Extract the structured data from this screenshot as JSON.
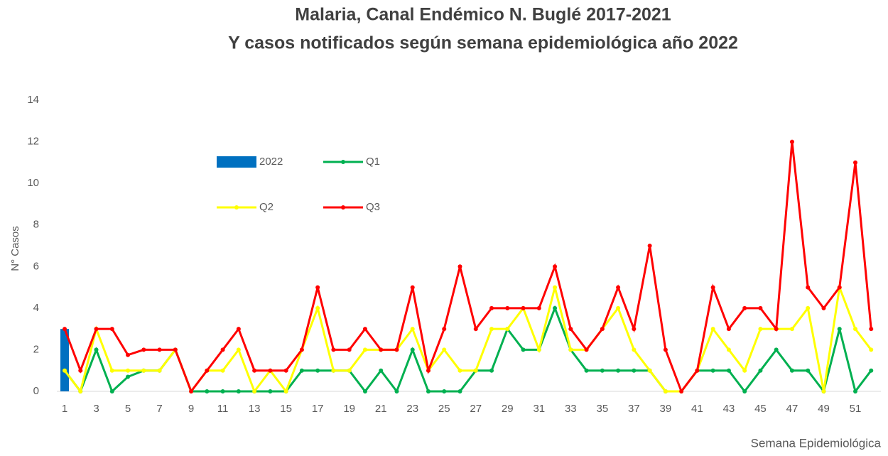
{
  "chart_data": {
    "type": "line",
    "title": "Malaria, Canal Endémico N. Buglé 2017-2021",
    "subtitle": "Y casos notificados según semana epidemiológica año 2022",
    "y_label": "N° Casos",
    "x_label": "Semana Epidemiológica",
    "categories": [
      "1",
      null,
      "3",
      null,
      "5",
      null,
      "7",
      null,
      "9",
      null,
      "11",
      null,
      "13",
      null,
      "15",
      null,
      "17",
      null,
      "19",
      null,
      "21",
      null,
      "23",
      null,
      "25",
      null,
      "27",
      null,
      "29",
      null,
      "31",
      null,
      "33",
      null,
      "35",
      null,
      "37",
      null,
      "39",
      null,
      "41",
      null,
      "43",
      null,
      "45",
      null,
      "47",
      null,
      "49",
      null,
      "51",
      null
    ],
    "series": [
      {
        "name": "2022",
        "kind": "bar",
        "color": "#0070c0",
        "values": [
          3,
          null,
          null,
          null,
          null,
          null,
          null,
          null,
          null,
          null,
          null,
          null,
          null,
          null,
          null,
          null,
          null,
          null,
          null,
          null,
          null,
          null,
          null,
          null,
          null,
          null,
          null,
          null,
          null,
          null,
          null,
          null,
          null,
          null,
          null,
          null,
          null,
          null,
          null,
          null,
          null,
          null,
          null,
          null,
          null,
          null,
          null,
          null,
          null,
          null,
          null,
          null
        ]
      },
      {
        "name": "Q1",
        "kind": "line",
        "color": "#00b050",
        "values": [
          1,
          0,
          2,
          0,
          0.7,
          1,
          1,
          2,
          0,
          0,
          0,
          0,
          0,
          0,
          0,
          1,
          1,
          1,
          1,
          0,
          1,
          0,
          2,
          0,
          0,
          0,
          1,
          1,
          3,
          2,
          2,
          4,
          2,
          1,
          1,
          1,
          1,
          1,
          0,
          0,
          1,
          1,
          1,
          0,
          1,
          2,
          1,
          1,
          0,
          3,
          0,
          1
        ]
      },
      {
        "name": "Q2",
        "kind": "line",
        "color": "#ffff00",
        "values": [
          1,
          0,
          3,
          1,
          1,
          1,
          1,
          2,
          0,
          1,
          1,
          2,
          0,
          1,
          0,
          2,
          4,
          1,
          1,
          2,
          2,
          2,
          3,
          1,
          2,
          1,
          1,
          3,
          3,
          4,
          2,
          5,
          2,
          2,
          3,
          4,
          2,
          1,
          0,
          0,
          1,
          3,
          2,
          1,
          3,
          3,
          3,
          4,
          0,
          5,
          3,
          2
        ]
      },
      {
        "name": "Q3",
        "kind": "line",
        "color": "#ff0000",
        "values": [
          3,
          1,
          3,
          3,
          1.75,
          2,
          2,
          2,
          0,
          1,
          2,
          3,
          1,
          1,
          1,
          2,
          5,
          2,
          2,
          3,
          2,
          2,
          5,
          1,
          3,
          6,
          3,
          4,
          4,
          4,
          4,
          6,
          3,
          2,
          3,
          5,
          3,
          7,
          2,
          0,
          1,
          5,
          3,
          4,
          4,
          3,
          12,
          5,
          4,
          5,
          11,
          3
        ]
      }
    ],
    "ylim": [
      0,
      14
    ],
    "yticks": [
      0,
      2,
      4,
      6,
      8,
      10,
      12,
      14
    ],
    "grid": false
  }
}
